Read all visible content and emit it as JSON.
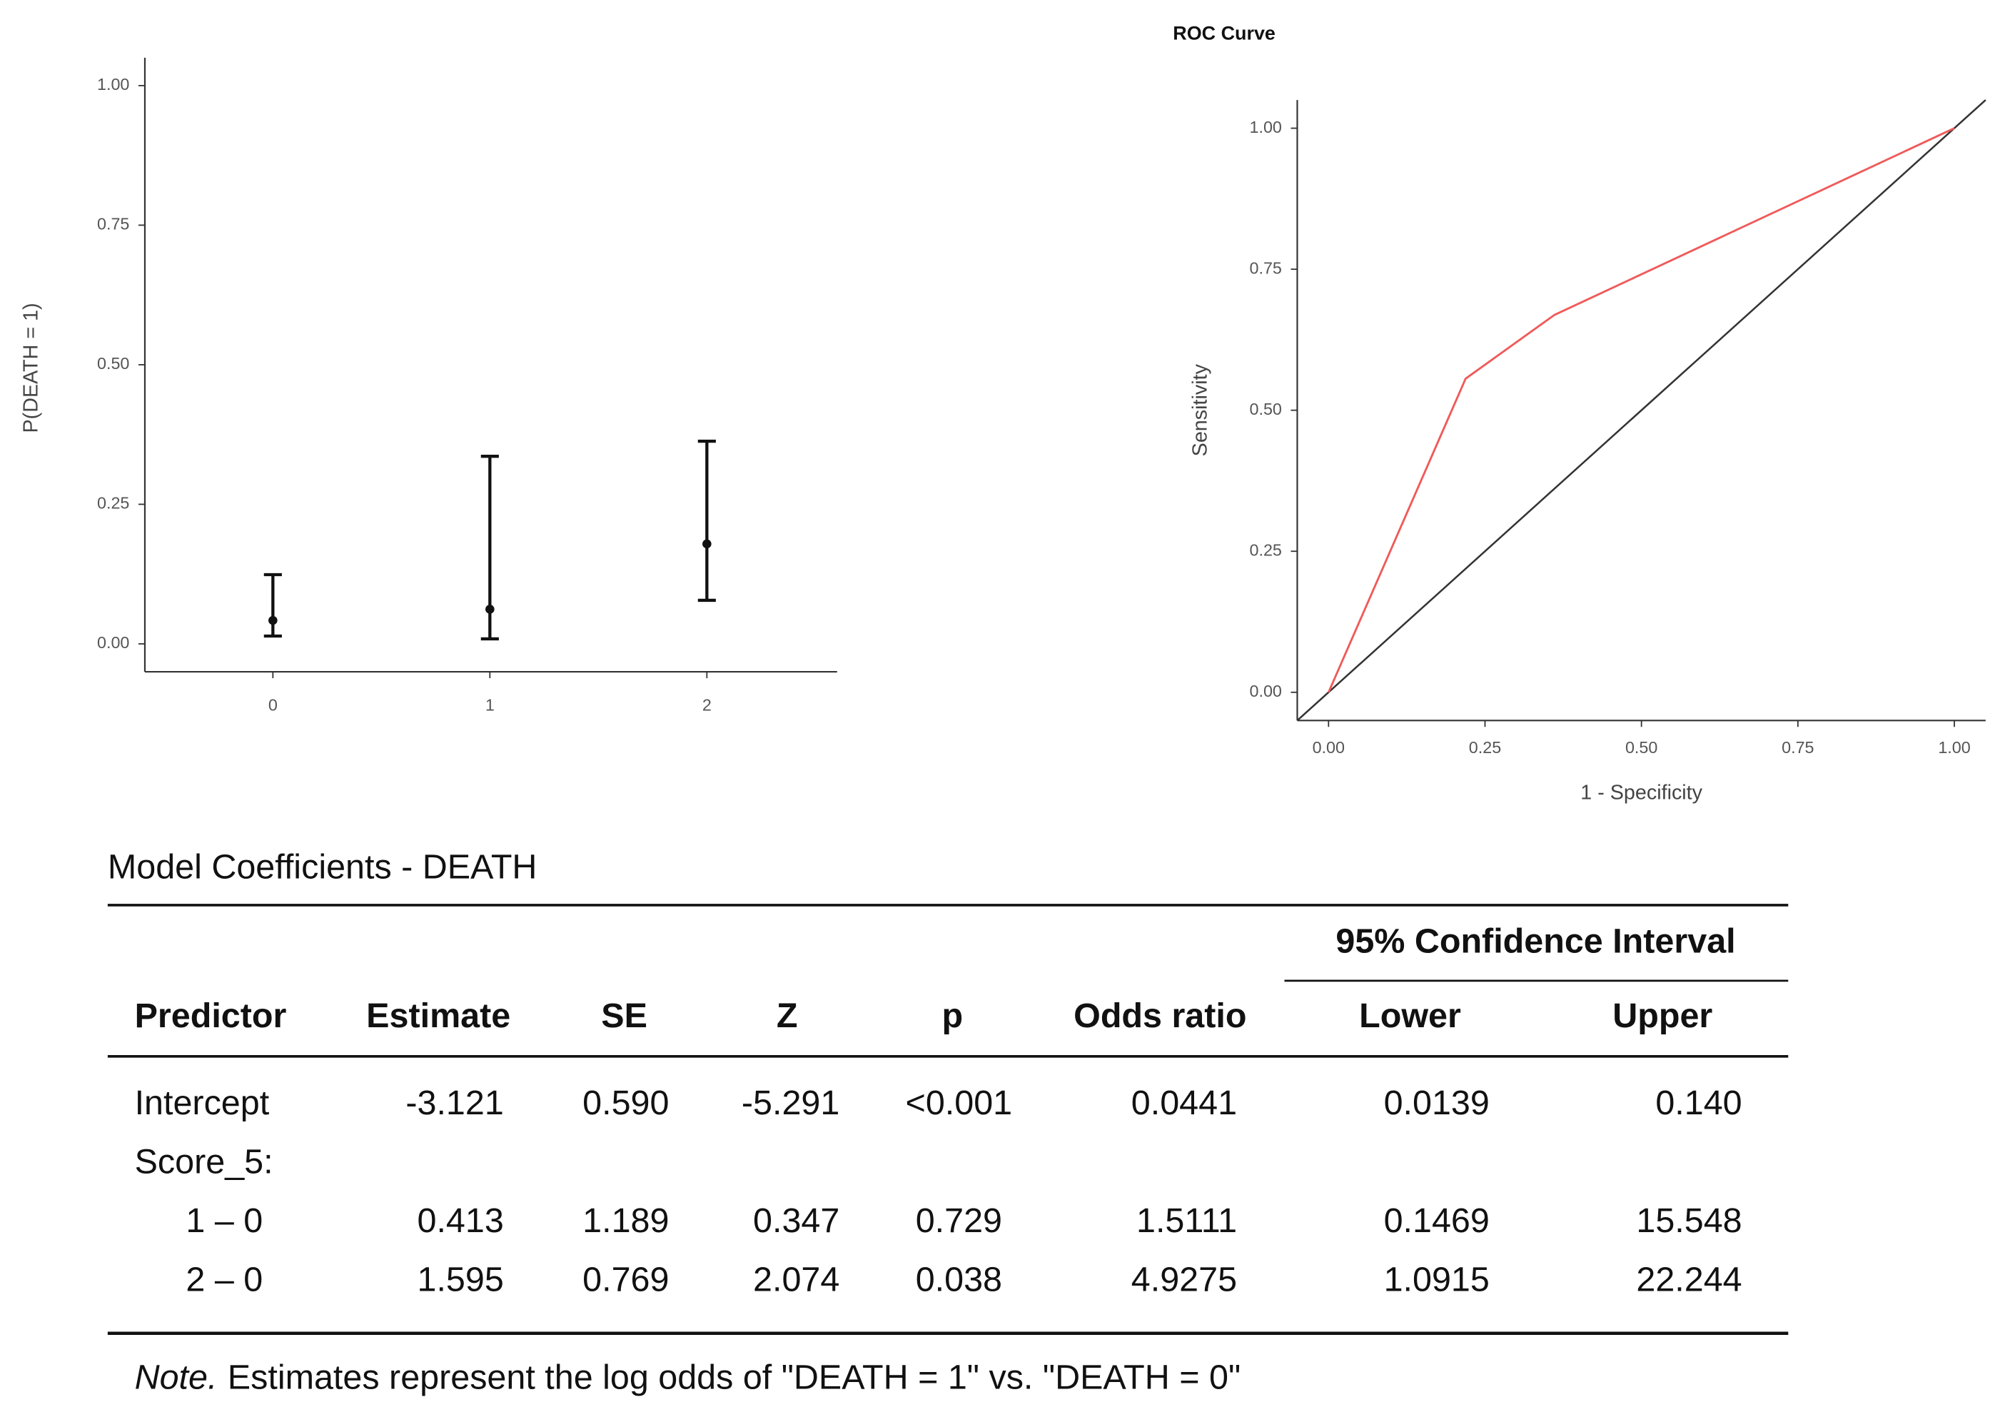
{
  "chart_data": [
    {
      "type": "errorbar",
      "ylabel": "P(DEATH = 1)",
      "categories": [
        "0",
        "1",
        "2"
      ],
      "values": [
        0.042,
        0.062,
        0.179
      ],
      "lower": [
        0.014,
        0.009,
        0.078
      ],
      "upper": [
        0.124,
        0.336,
        0.363
      ],
      "color": "#111111",
      "ylim": [
        -0.05,
        1.05
      ],
      "yticks": [
        {
          "value": 0,
          "label": "0.00"
        },
        {
          "value": 0.25,
          "label": "0.25"
        },
        {
          "value": 0.5,
          "label": "0.50"
        },
        {
          "value": 0.75,
          "label": "0.75"
        },
        {
          "value": 1,
          "label": "1.00"
        }
      ]
    },
    {
      "type": "line",
      "title": "ROC Curve",
      "xlabel": "1 - Specificity",
      "ylabel": "Sensitivity",
      "series": [
        {
          "color": "#f05a5a",
          "x": [
            0,
            0.219,
            0.361,
            1
          ],
          "values": [
            0,
            0.556,
            0.669,
            1
          ]
        }
      ],
      "diagonal": true,
      "xlim": [
        -0.05,
        1.05
      ],
      "ylim": [
        -0.05,
        1.05
      ],
      "xticks": [
        {
          "value": 0,
          "label": "0.00"
        },
        {
          "value": 0.25,
          "label": "0.25"
        },
        {
          "value": 0.5,
          "label": "0.50"
        },
        {
          "value": 0.75,
          "label": "0.75"
        },
        {
          "value": 1,
          "label": "1.00"
        }
      ],
      "yticks": [
        {
          "value": 0,
          "label": "0.00"
        },
        {
          "value": 0.25,
          "label": "0.25"
        },
        {
          "value": 0.5,
          "label": "0.50"
        },
        {
          "value": 0.75,
          "label": "0.75"
        },
        {
          "value": 1,
          "label": "1.00"
        }
      ]
    }
  ],
  "table": {
    "title": "Model Coefficients - DEATH",
    "group_header": "95% Confidence Interval",
    "columns": [
      "Predictor",
      "Estimate",
      "SE",
      "Z",
      "p",
      "Odds ratio",
      "Lower",
      "Upper"
    ],
    "rows": [
      [
        "Intercept",
        "-3.121",
        "0.590",
        "-5.291",
        "<0.001",
        "0.0441",
        "0.0139",
        "0.140"
      ],
      [
        "Score_5:"
      ],
      [
        "1 – 0",
        "0.413",
        "1.189",
        "0.347",
        "0.729",
        "1.5111",
        "0.1469",
        "15.548"
      ],
      [
        "2 – 0",
        "1.595",
        "0.769",
        "2.074",
        "0.038",
        "4.9275",
        "1.0915",
        "22.244"
      ]
    ],
    "note_label": "Note.",
    "note": "Estimates represent the log odds of \"DEATH = 1\" vs. \"DEATH = 0\""
  }
}
